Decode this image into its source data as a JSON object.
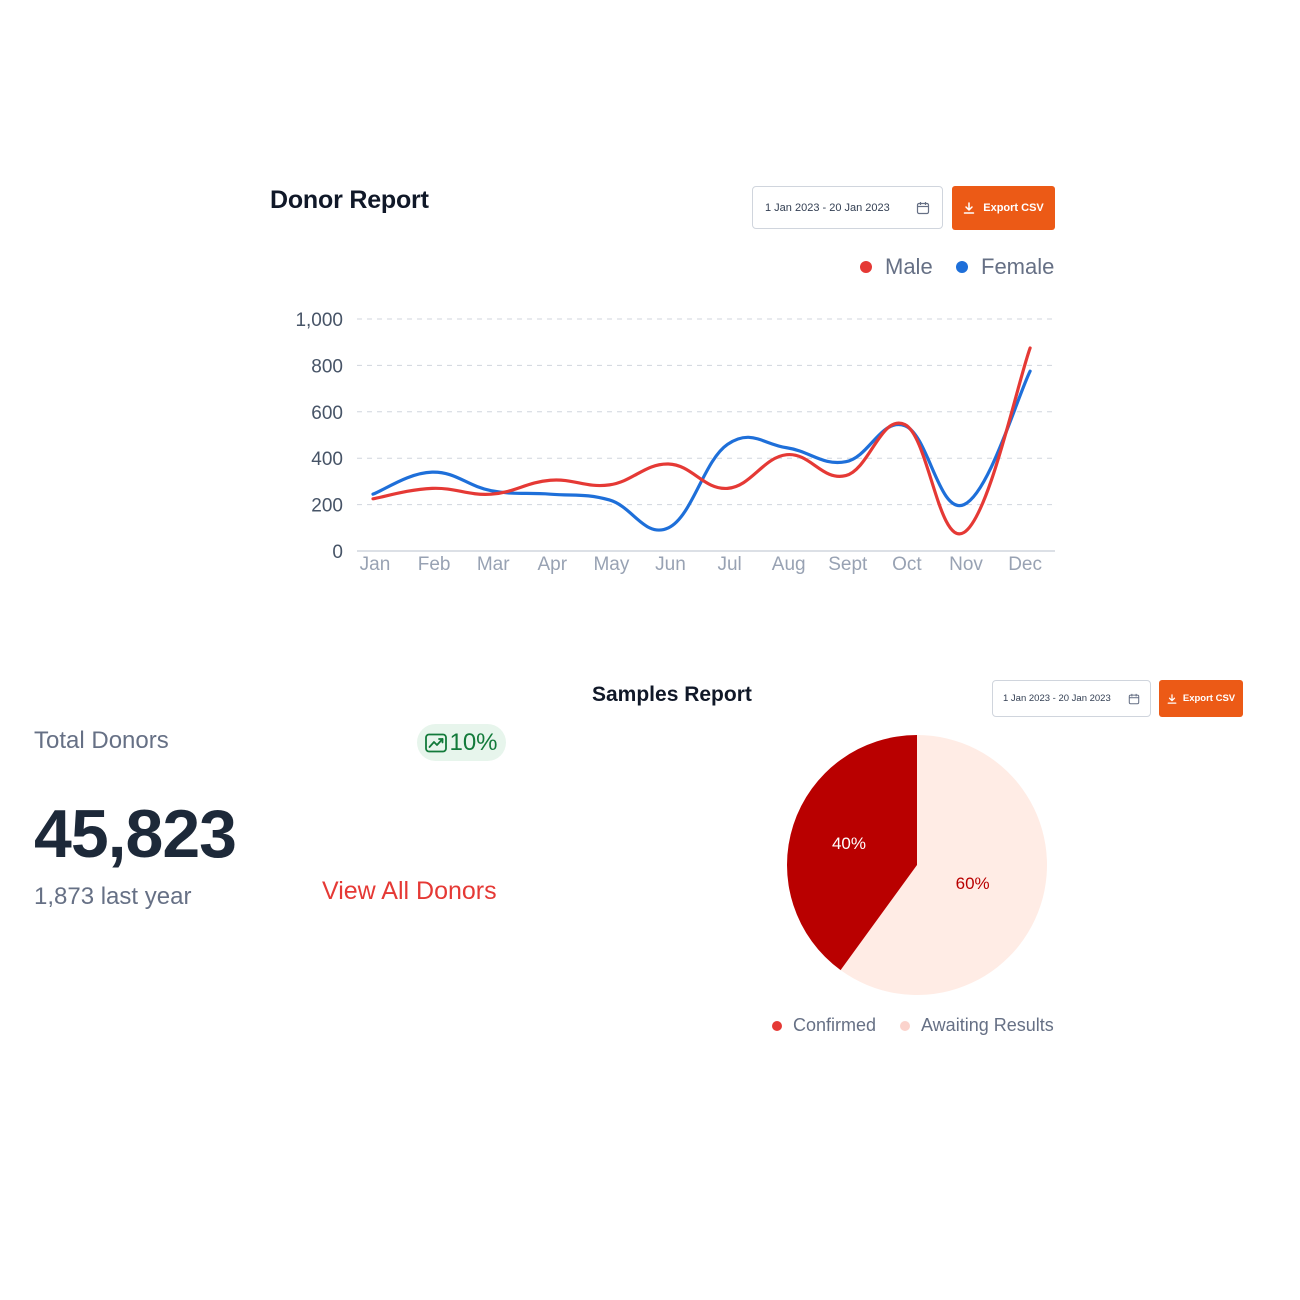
{
  "donor_report": {
    "title": "Donor Report",
    "date_range": "1 Jan 2023 - 20 Jan 2023",
    "export_label": "Export CSV",
    "legend": [
      {
        "label": "Male",
        "color": "#e53935"
      },
      {
        "label": "Female",
        "color": "#1e6fd9"
      }
    ]
  },
  "chart_data": [
    {
      "type": "line",
      "x": [
        "Jan",
        "Feb",
        "Mar",
        "Apr",
        "May",
        "Jun",
        "Jul",
        "Aug",
        "Sept",
        "Oct",
        "Nov",
        "Dec"
      ],
      "ylim": [
        0,
        1000
      ],
      "y_ticks": [
        "0",
        "200",
        "400",
        "600",
        "800",
        "1,000"
      ],
      "grid": true,
      "legend_position": "top-right",
      "series": [
        {
          "name": "Male",
          "color": "#e53935",
          "values": [
            225,
            270,
            245,
            305,
            285,
            375,
            270,
            415,
            325,
            545,
            80,
            875
          ]
        },
        {
          "name": "Female",
          "color": "#1e6fd9",
          "values": [
            245,
            340,
            260,
            245,
            220,
            100,
            460,
            445,
            385,
            540,
            200,
            775
          ]
        }
      ]
    },
    {
      "type": "pie",
      "categories": [
        "Confirmed",
        "Awaiting Results"
      ],
      "values": [
        40,
        60
      ],
      "labels": [
        "40%",
        "60%"
      ],
      "colors": [
        "#b90000",
        "#ffece5"
      ],
      "legend_position": "bottom"
    }
  ],
  "stats": {
    "label": "Total Donors",
    "trend": "10%",
    "value": "45,823",
    "last_year": "1,873 last year",
    "view_all": "View All Donors"
  },
  "samples_report": {
    "title": "Samples Report",
    "date_range": "1 Jan 2023 - 20 Jan 2023",
    "export_label": "Export CSV",
    "legend": [
      {
        "label": "Confirmed",
        "color": "#e53935"
      },
      {
        "label": "Awaiting Results",
        "color": "#fbd3cc"
      }
    ]
  }
}
